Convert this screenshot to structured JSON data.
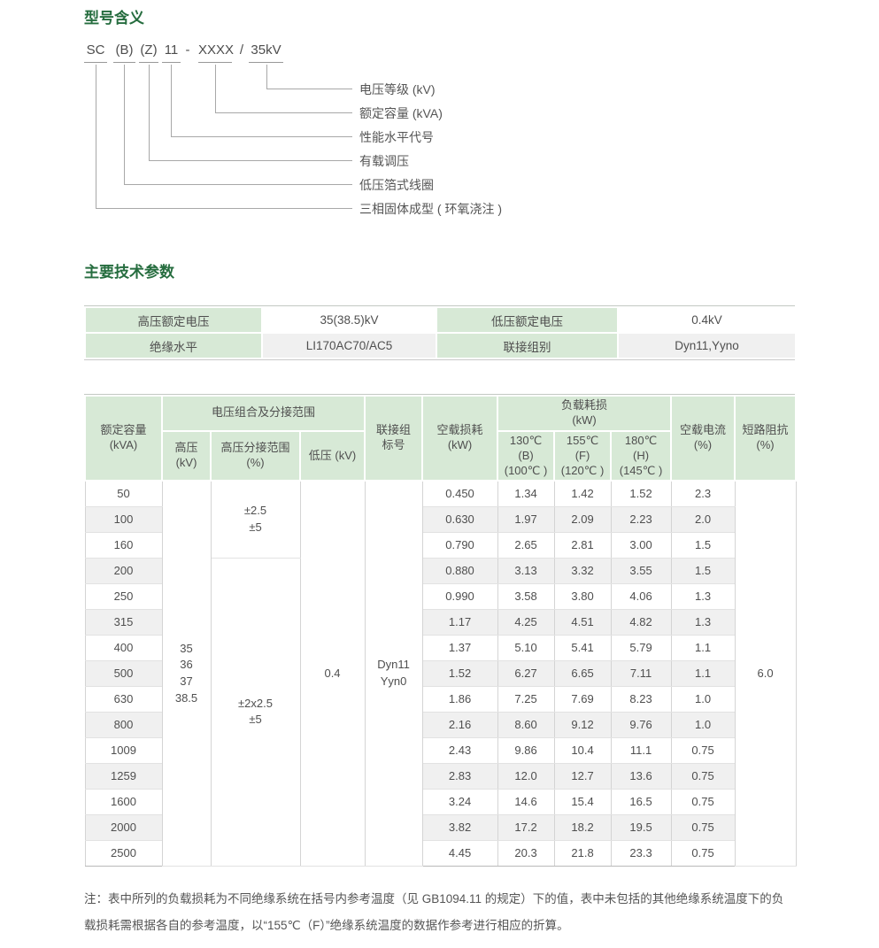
{
  "colors": {
    "accent_green": "#266d3f",
    "header_green": "#d7e9d6",
    "stripe_gray": "#f0f0f0",
    "line_gray": "#a8a8a8"
  },
  "model_section": {
    "title": "型号含义"
  },
  "model_diagram": {
    "code_segments": [
      {
        "text": "SC",
        "underlined": true
      },
      {
        "text": "(B)",
        "underlined": true
      },
      {
        "text": "(Z)",
        "underlined": true
      },
      {
        "text": "11",
        "underlined": true
      },
      {
        "text": "-",
        "underlined": false
      },
      {
        "text": "XXXX",
        "underlined": true
      },
      {
        "text": "/",
        "underlined": false
      },
      {
        "text": "35kV",
        "underlined": true
      }
    ],
    "callouts": [
      "电压等级 (kV)",
      "额定容量 (kVA)",
      "性能水平代号",
      "有载调压",
      "低压箔式线圈",
      "三相固体成型 ( 环氧浇注 )"
    ]
  },
  "params_section": {
    "title": "主要技术参数"
  },
  "basic_table": {
    "rows": [
      [
        "高压额定电压",
        "35(38.5)kV",
        "低压额定电压",
        "0.4kV"
      ],
      [
        "绝缘水平",
        "LI170AC70/AC5",
        "联接组别",
        "Dyn11,Yyno"
      ]
    ]
  },
  "main_table": {
    "headers": {
      "capacity": "额定容量\n(kVA)",
      "voltage_group": "电压组合及分接范围",
      "hv": "高压\n(kV)",
      "hv_tap_range": "高压分接范围\n(%)",
      "lv": "低压 (kV)",
      "vector_group": "联接组\n标号",
      "no_load_loss": "空载损耗\n(kW)",
      "load_loss": "负载耗损\n(kW)",
      "t130": "130℃\n(B)\n(100℃ )",
      "t155": "155℃\n(F)\n(120℃ )",
      "t180": "180℃\n(H)\n(145℃ )",
      "no_load_current": "空载电流\n(%)",
      "impedance": "短路阻抗\n(%)"
    },
    "merged": {
      "hv": "35\n36\n37\n38.5",
      "tap_range_1": "±2.5\n±5",
      "tap_range_2": "±2x2.5\n±5",
      "lv": "0.4",
      "vector_group": "Dyn11\nYyn0",
      "impedance": "6.0"
    },
    "rows": [
      {
        "capacity": "50",
        "no_load_loss": "0.450",
        "load_loss_130": "1.34",
        "load_loss_155": "1.42",
        "load_loss_180": "1.52",
        "no_load_current": "2.3"
      },
      {
        "capacity": "100",
        "no_load_loss": "0.630",
        "load_loss_130": "1.97",
        "load_loss_155": "2.09",
        "load_loss_180": "2.23",
        "no_load_current": "2.0"
      },
      {
        "capacity": "160",
        "no_load_loss": "0.790",
        "load_loss_130": "2.65",
        "load_loss_155": "2.81",
        "load_loss_180": "3.00",
        "no_load_current": "1.5"
      },
      {
        "capacity": "200",
        "no_load_loss": "0.880",
        "load_loss_130": "3.13",
        "load_loss_155": "3.32",
        "load_loss_180": "3.55",
        "no_load_current": "1.5"
      },
      {
        "capacity": "250",
        "no_load_loss": "0.990",
        "load_loss_130": "3.58",
        "load_loss_155": "3.80",
        "load_loss_180": "4.06",
        "no_load_current": "1.3"
      },
      {
        "capacity": "315",
        "no_load_loss": "1.17",
        "load_loss_130": "4.25",
        "load_loss_155": "4.51",
        "load_loss_180": "4.82",
        "no_load_current": "1.3"
      },
      {
        "capacity": "400",
        "no_load_loss": "1.37",
        "load_loss_130": "5.10",
        "load_loss_155": "5.41",
        "load_loss_180": "5.79",
        "no_load_current": "1.1"
      },
      {
        "capacity": "500",
        "no_load_loss": "1.52",
        "load_loss_130": "6.27",
        "load_loss_155": "6.65",
        "load_loss_180": "7.11",
        "no_load_current": "1.1"
      },
      {
        "capacity": "630",
        "no_load_loss": "1.86",
        "load_loss_130": "7.25",
        "load_loss_155": "7.69",
        "load_loss_180": "8.23",
        "no_load_current": "1.0"
      },
      {
        "capacity": "800",
        "no_load_loss": "2.16",
        "load_loss_130": "8.60",
        "load_loss_155": "9.12",
        "load_loss_180": "9.76",
        "no_load_current": "1.0"
      },
      {
        "capacity": "1009",
        "no_load_loss": "2.43",
        "load_loss_130": "9.86",
        "load_loss_155": "10.4",
        "load_loss_180": "11.1",
        "no_load_current": "0.75"
      },
      {
        "capacity": "1259",
        "no_load_loss": "2.83",
        "load_loss_130": "12.0",
        "load_loss_155": "12.7",
        "load_loss_180": "13.6",
        "no_load_current": "0.75"
      },
      {
        "capacity": "1600",
        "no_load_loss": "3.24",
        "load_loss_130": "14.6",
        "load_loss_155": "15.4",
        "load_loss_180": "16.5",
        "no_load_current": "0.75"
      },
      {
        "capacity": "2000",
        "no_load_loss": "3.82",
        "load_loss_130": "17.2",
        "load_loss_155": "18.2",
        "load_loss_180": "19.5",
        "no_load_current": "0.75"
      },
      {
        "capacity": "2500",
        "no_load_loss": "4.45",
        "load_loss_130": "20.3",
        "load_loss_155": "21.8",
        "load_loss_180": "23.3",
        "no_load_current": "0.75"
      }
    ]
  },
  "note": "注：表中所列的负载损耗为不同绝缘系统在括号内参考温度（见 GB1094.11 的规定）下的值，表中未包括的其他绝缘系统温度下的负载损耗需根据各自的参考温度，以“155℃（F）”绝缘系统温度的数据作参考进行相应的折算。"
}
